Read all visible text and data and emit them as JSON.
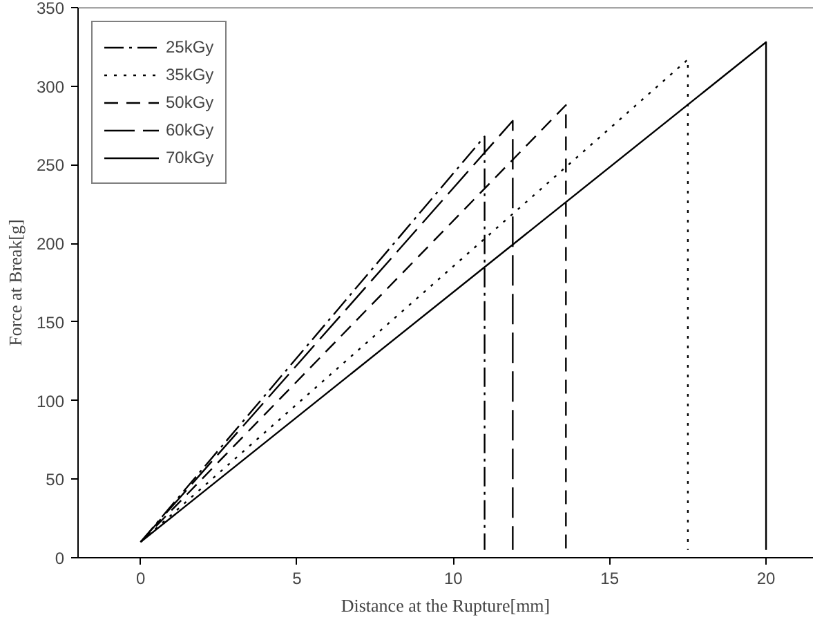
{
  "chart_data": {
    "type": "line",
    "xlabel": "Distance at the Rupture[mm]",
    "ylabel": "Force at Break[g]",
    "xlim": [
      -2,
      21.5
    ],
    "ylim": [
      0,
      350
    ],
    "xticks": [
      0,
      5,
      10,
      15,
      20
    ],
    "yticks": [
      0,
      50,
      100,
      150,
      200,
      250,
      300,
      350
    ],
    "grid": false,
    "legend": "top left",
    "marker": "none",
    "series": [
      {
        "name": "25kGy",
        "color": "#000000",
        "line_style": "dashdot",
        "x": [
          0,
          11.0,
          11.0
        ],
        "values": [
          10,
          268,
          5
        ]
      },
      {
        "name": "35kGy",
        "color": "#000000",
        "line_style": "dotted",
        "x": [
          0,
          17.5,
          17.5
        ],
        "values": [
          10,
          317,
          5
        ]
      },
      {
        "name": "50kGy",
        "color": "#000000",
        "line_style": "dashed",
        "x": [
          0,
          13.6,
          13.6
        ],
        "values": [
          10,
          288,
          5
        ]
      },
      {
        "name": "60kGy",
        "color": "#000000",
        "line_style": "longdash",
        "x": [
          0,
          11.9,
          11.9
        ],
        "values": [
          10,
          278,
          5
        ]
      },
      {
        "name": "70kGy",
        "color": "#000000",
        "line_style": "solid",
        "x": [
          0,
          20.0,
          20.0
        ],
        "values": [
          10,
          328,
          5
        ]
      }
    ]
  }
}
